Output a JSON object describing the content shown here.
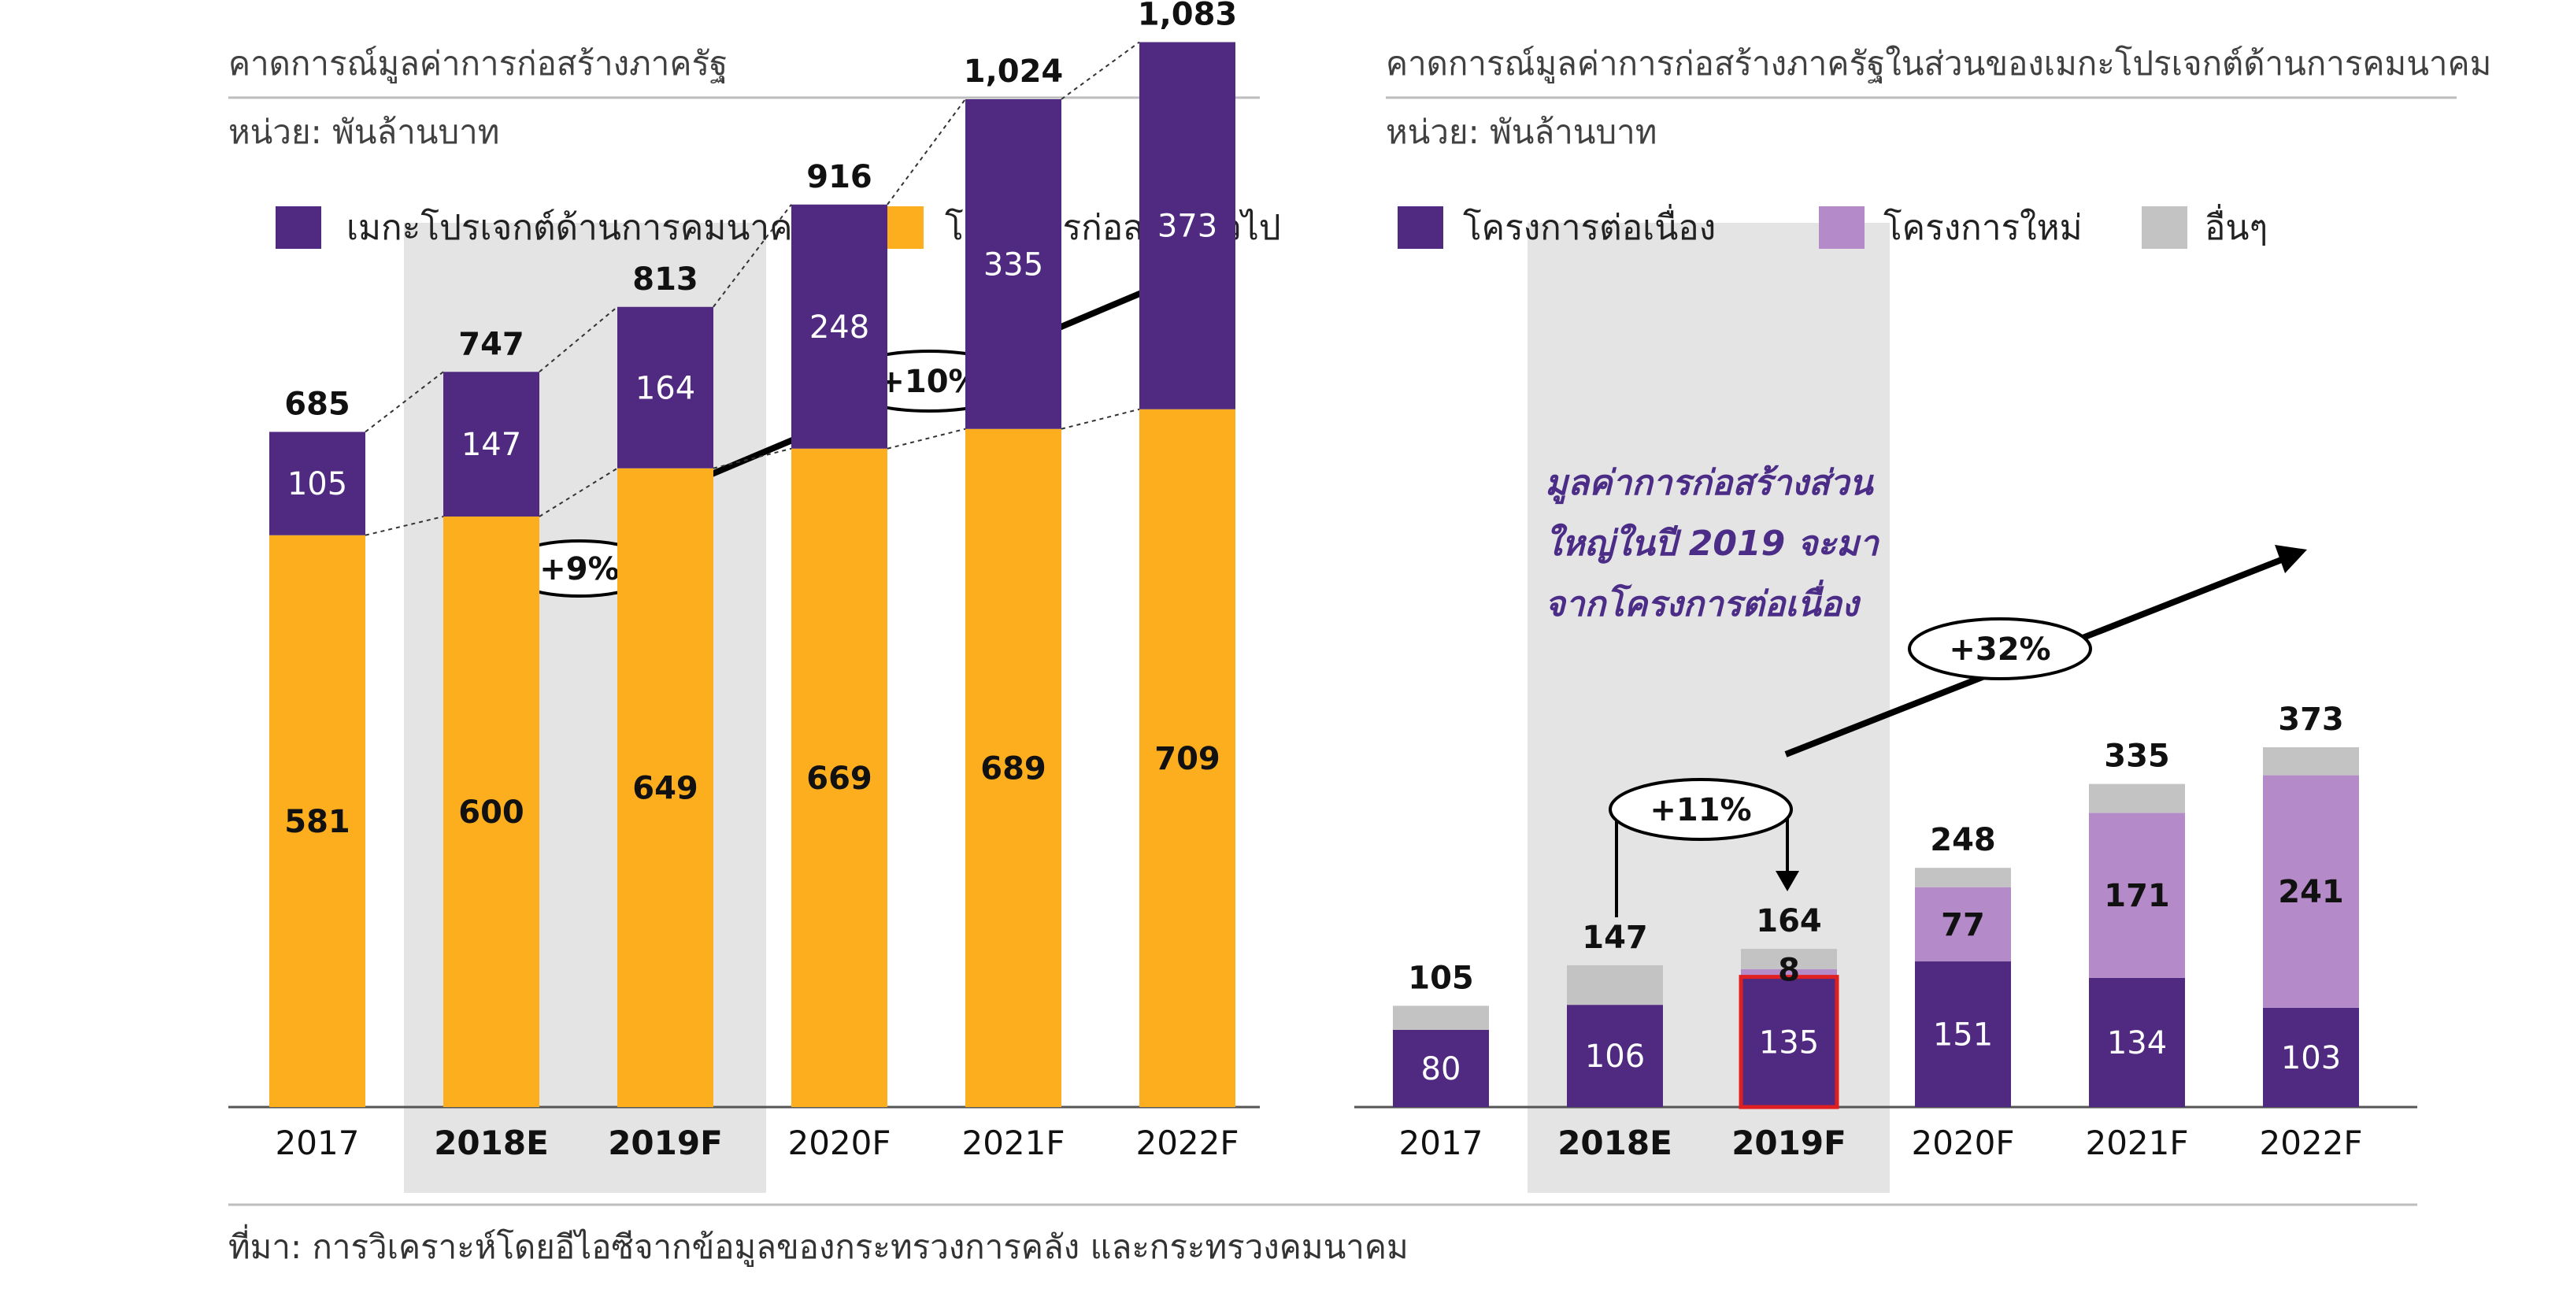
{
  "colors": {
    "purple": "#4F2A80",
    "orange": "#FCAE1E",
    "lightPurple": "#B48BC8",
    "gray": "#C3C3C3",
    "highlight": "#E4E4E4",
    "outline": "#E02020"
  },
  "left": {
    "title": "คาดการณ์มูลค่าการก่อสร้างภาครัฐ",
    "unit": "หน่วย: พันล้านบาท",
    "legend": [
      "เมกะโปรเจกต์ด้านการคมนาคม",
      "โครงการก่อสร้างทั่วไป"
    ],
    "growth": [
      "+9%",
      "+10%"
    ]
  },
  "right": {
    "title": "คาดการณ์มูลค่าการก่อสร้างภาครัฐในส่วนของเมกะโปรเจกต์ด้านการคมนาคม",
    "unit": "หน่วย: พันล้านบาท",
    "legend": [
      "โครงการต่อเนื่อง",
      "โครงการใหม่",
      "อื่นๆ"
    ],
    "note": [
      "มูลค่าการก่อสร้างส่วน",
      "ใหญ่ในปี 2019 จะมา",
      "จากโครงการต่อเนื่อง"
    ],
    "growth": [
      "+11%",
      "+32%"
    ]
  },
  "source": "ที่มา: การวิเคราะห์โดยอีไอซีจากข้อมูลของกระทรวงการคลัง และกระทรวงคมนาคม",
  "chart_data": [
    {
      "type": "bar",
      "stacked": true,
      "title": "คาดการณ์มูลค่าการก่อสร้างภาครัฐ",
      "ylabel": "หน่วย: พันล้านบาท",
      "categories": [
        "2017",
        "2018E",
        "2019F",
        "2020F",
        "2021F",
        "2022F"
      ],
      "highlighted_categories": [
        "2018E",
        "2019F"
      ],
      "series": [
        {
          "name": "โครงการก่อสร้างทั่วไป",
          "values": [
            581,
            600,
            649,
            669,
            689,
            709
          ]
        },
        {
          "name": "เมกะโปรเจกต์ด้านการคมนาคม",
          "values": [
            105,
            147,
            164,
            248,
            335,
            373
          ]
        }
      ],
      "totals": [
        685,
        747,
        813,
        916,
        1024,
        1083
      ],
      "total_labels": [
        "685",
        "747",
        "813",
        "916",
        "1,024",
        "1,083"
      ],
      "ylim": [
        0,
        1250
      ],
      "legend_position": "top"
    },
    {
      "type": "bar",
      "stacked": true,
      "title": "คาดการณ์มูลค่าการก่อสร้างภาครัฐในส่วนของเมกะโปรเจกต์ด้านการคมนาคม",
      "ylabel": "หน่วย: พันล้านบาท",
      "categories": [
        "2017",
        "2018E",
        "2019F",
        "2020F",
        "2021F",
        "2022F"
      ],
      "highlighted_categories": [
        "2018E",
        "2019F"
      ],
      "series": [
        {
          "name": "โครงการต่อเนื่อง",
          "values": [
            80,
            106,
            135,
            151,
            134,
            103
          ],
          "labels": [
            "80",
            "106",
            "135",
            "151",
            "134",
            "103"
          ]
        },
        {
          "name": "โครงการใหม่",
          "values": [
            0,
            0,
            8,
            77,
            171,
            241
          ],
          "labels": [
            "",
            "",
            "8",
            "77",
            "171",
            "241"
          ]
        },
        {
          "name": "อื่นๆ",
          "values": [
            25,
            41,
            21,
            20,
            30,
            29
          ],
          "labels": [
            "",
            "",
            "",
            "",
            "",
            ""
          ]
        }
      ],
      "totals": [
        105,
        147,
        164,
        248,
        335,
        373
      ],
      "total_labels": [
        "105",
        "147",
        "164",
        "248",
        "335",
        "373"
      ],
      "ylim": [
        0,
        600
      ],
      "legend_position": "top"
    }
  ]
}
